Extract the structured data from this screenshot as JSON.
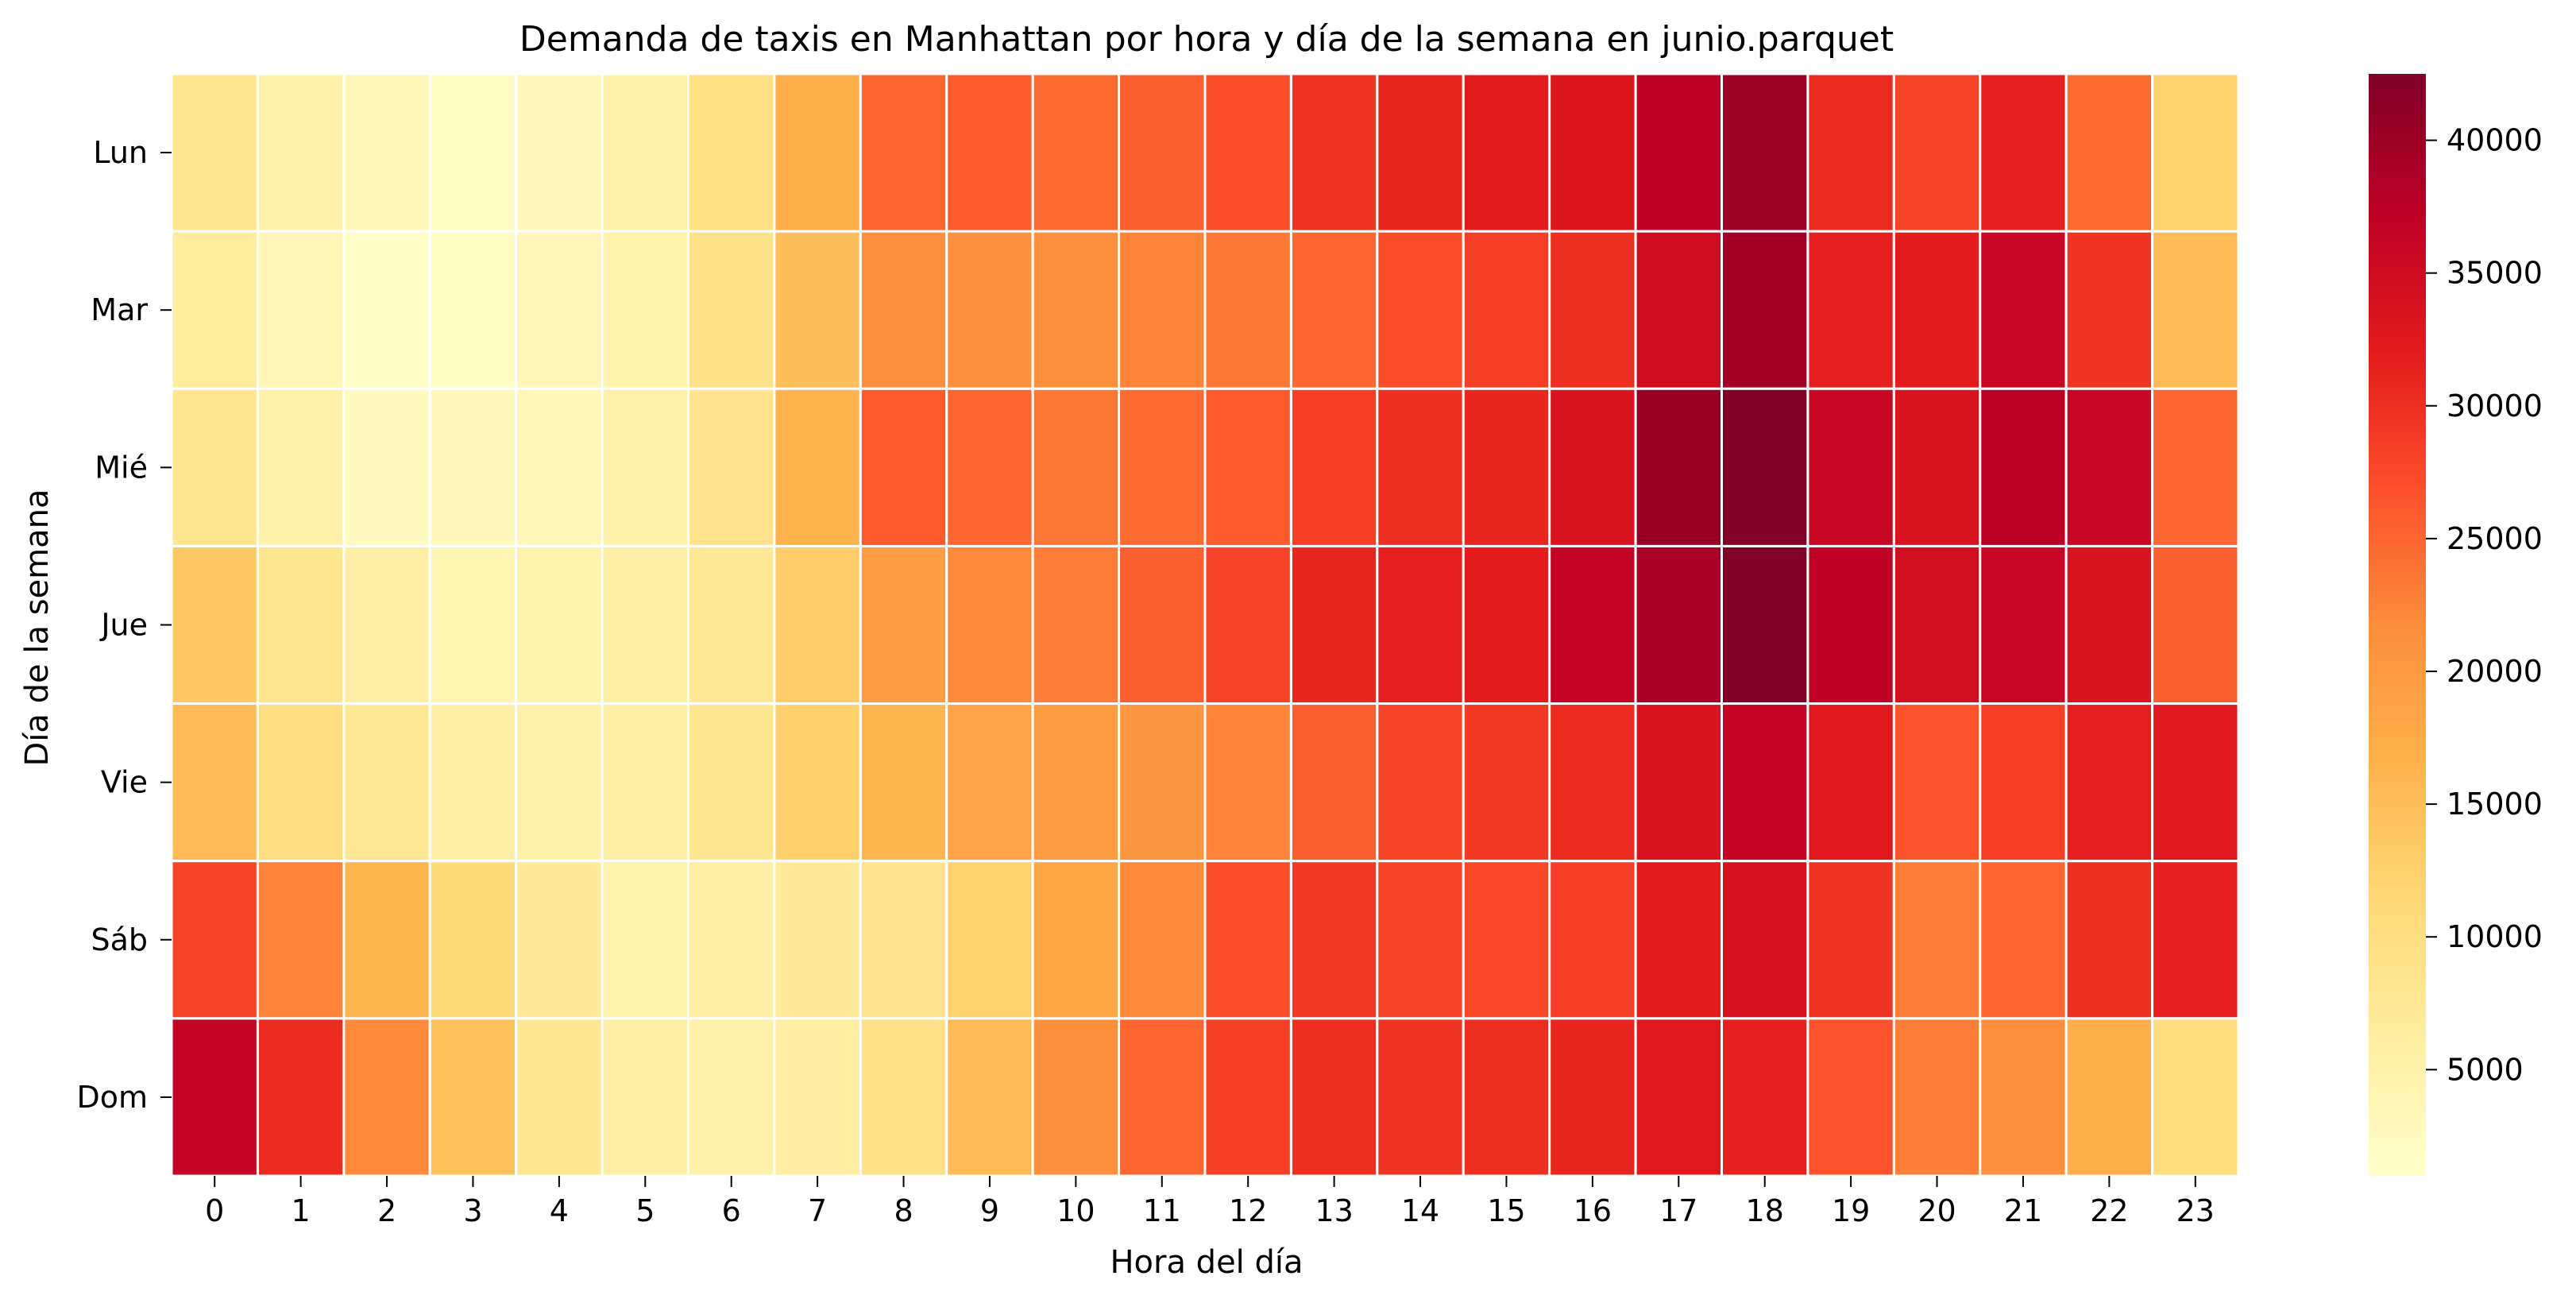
{
  "chart_data": {
    "type": "heatmap",
    "title": "Demanda de taxis en Manhattan por hora y día de la semana en junio.parquet",
    "xlabel": "Hora del día",
    "ylabel": "Día de la semana",
    "x": [
      "0",
      "1",
      "2",
      "3",
      "4",
      "5",
      "6",
      "7",
      "8",
      "9",
      "10",
      "11",
      "12",
      "13",
      "14",
      "15",
      "16",
      "17",
      "18",
      "19",
      "20",
      "21",
      "22",
      "23"
    ],
    "y": [
      "Lun",
      "Mar",
      "Mié",
      "Jue",
      "Vie",
      "Sáb",
      "Dom"
    ],
    "colormap": "YlOrRd",
    "colorbar": {
      "min": 1000,
      "max": 42500,
      "ticks": [
        "5000",
        "10000",
        "15000",
        "20000",
        "25000",
        "30000",
        "35000",
        "40000"
      ]
    },
    "grid_line_color": "#ffffff",
    "values": [
      [
        8000,
        5000,
        3500,
        2000,
        3000,
        5000,
        9500,
        17000,
        25000,
        26000,
        24500,
        25500,
        27000,
        29500,
        31000,
        32000,
        33000,
        37000,
        40000,
        30500,
        28000,
        31500,
        24500,
        12000
      ],
      [
        6500,
        3500,
        1500,
        2000,
        3500,
        4500,
        9000,
        15000,
        21500,
        21500,
        21500,
        22500,
        23500,
        25000,
        27000,
        28500,
        30000,
        35000,
        39500,
        31500,
        32000,
        36000,
        29500,
        15500
      ],
      [
        8000,
        5000,
        2500,
        3000,
        3500,
        5000,
        8500,
        16500,
        26000,
        25000,
        23500,
        24500,
        26000,
        28500,
        30000,
        31000,
        33500,
        40500,
        42500,
        36000,
        33500,
        37500,
        36000,
        25000
      ],
      [
        13500,
        8000,
        5500,
        4000,
        4500,
        5500,
        7500,
        13000,
        19500,
        22000,
        23000,
        25500,
        28000,
        31000,
        31500,
        32000,
        36500,
        39000,
        42500,
        37000,
        34500,
        36000,
        33500,
        25500
      ],
      [
        15500,
        10000,
        7500,
        5500,
        5000,
        5500,
        8000,
        12500,
        16000,
        18500,
        19500,
        20500,
        22500,
        25500,
        28000,
        29000,
        30500,
        33500,
        36500,
        32500,
        26500,
        28500,
        31500,
        32500
      ],
      [
        28000,
        22500,
        16000,
        11000,
        7000,
        4500,
        5500,
        7000,
        8500,
        12000,
        18000,
        22000,
        27000,
        29000,
        28000,
        27500,
        28500,
        32000,
        34000,
        29500,
        23000,
        25000,
        30000,
        31500
      ],
      [
        36500,
        30500,
        22000,
        14500,
        8000,
        5500,
        5000,
        6000,
        9000,
        15500,
        21500,
        25000,
        28500,
        30000,
        29500,
        30000,
        31000,
        32500,
        31500,
        26500,
        23000,
        21500,
        17000,
        10500
      ]
    ]
  }
}
